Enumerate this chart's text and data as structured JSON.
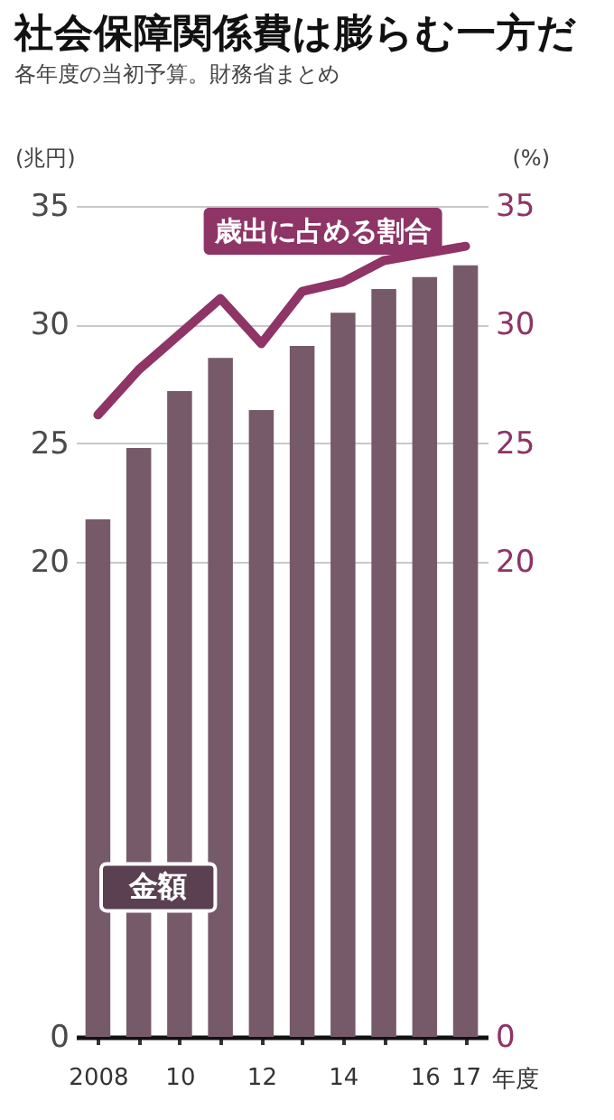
{
  "chart_data": {
    "type": "bar",
    "title": "社会保障関係費は膨らむ一方だ",
    "subtitle": "各年度の当初予算。財務省まとめ",
    "xlabel": "年度",
    "ylabel": "(兆円)",
    "y2label": "(%)",
    "categories": [
      "2008",
      null,
      "10",
      null,
      "12",
      null,
      "14",
      null,
      "16",
      "17"
    ],
    "series": [
      {
        "name": "金額",
        "color": "#765a6a",
        "values": [
          21.8,
          24.8,
          27.2,
          28.6,
          26.4,
          29.1,
          30.5,
          31.5,
          32.0,
          32.5
        ]
      },
      {
        "name": "歳出に占める割合",
        "type": "line",
        "axis": "y2",
        "color": "#8e3466",
        "values": [
          26.2,
          28.1,
          29.6,
          31.1,
          29.2,
          31.4,
          31.8,
          32.7,
          33.0,
          33.3
        ]
      }
    ],
    "ylim": [
      0,
      35
    ],
    "yticks": [
      0,
      20,
      25,
      30,
      35
    ],
    "y2lim": [
      0,
      35
    ],
    "y2ticks": [
      0,
      20,
      25,
      30,
      35
    ],
    "grid": "y"
  }
}
